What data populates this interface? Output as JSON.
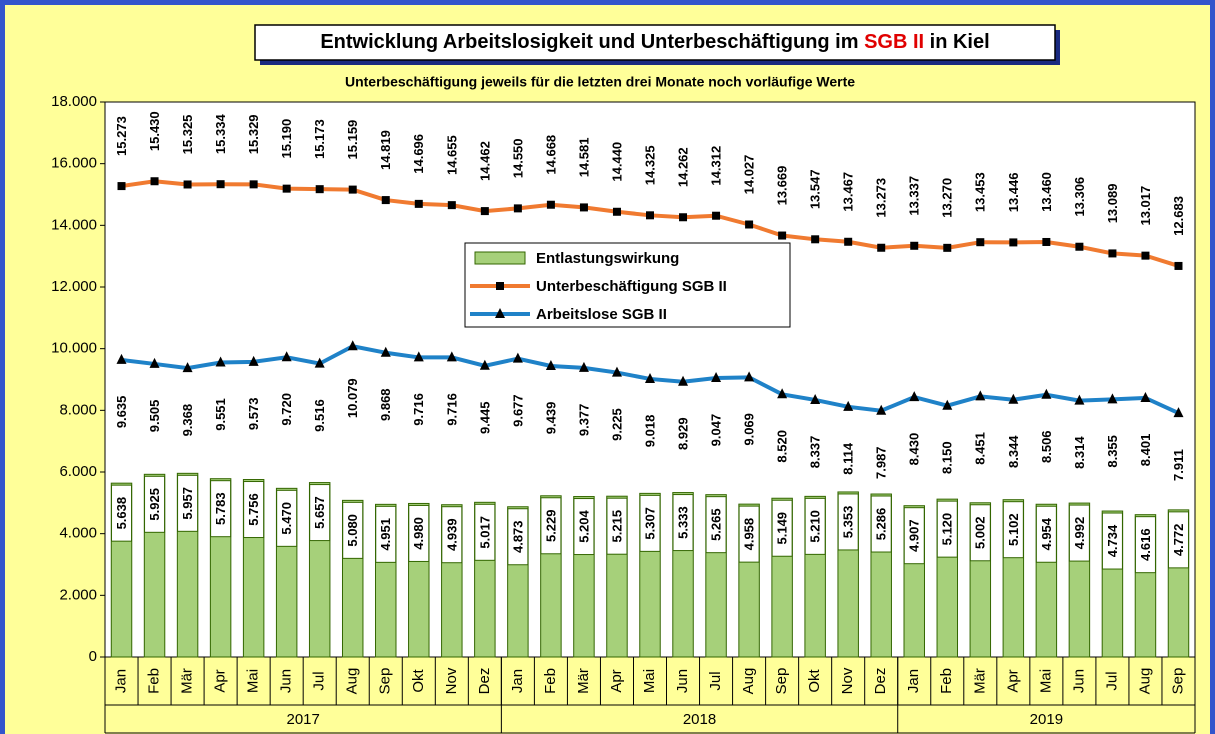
{
  "chart_data": {
    "type": "combo",
    "title": "Entwicklung Arbeitslosigkeit und Unterbeschäftigung im SGB II in Kiel",
    "title_highlight": "SGB II",
    "subtitle": "Unterbeschäftigung jeweils für die letzten drei Monate noch vorläufige Werte",
    "categories": [
      "Jan",
      "Feb",
      "Mär",
      "Apr",
      "Mai",
      "Jun",
      "Jul",
      "Aug",
      "Sep",
      "Okt",
      "Nov",
      "Dez",
      "Jan",
      "Feb",
      "Mär",
      "Apr",
      "Mai",
      "Jun",
      "Jul",
      "Aug",
      "Sep",
      "Okt",
      "Nov",
      "Dez",
      "Jan",
      "Feb",
      "Mär",
      "Apr",
      "Mai",
      "Jun",
      "Jul",
      "Aug",
      "Sep"
    ],
    "groups": [
      {
        "label": "2017",
        "size": 12
      },
      {
        "label": "2018",
        "size": 12
      },
      {
        "label": "2019",
        "size": 9
      }
    ],
    "ylim": [
      0,
      18000
    ],
    "yticks": [
      0,
      {
        "value": 2000,
        "label": "2.000"
      },
      {
        "value": 4000,
        "label": "4.000"
      },
      {
        "value": 6000,
        "label": "6.000"
      },
      {
        "value": 8000,
        "label": "8.000"
      },
      {
        "value": 10000,
        "label": "10.000"
      },
      {
        "value": 12000,
        "label": "12.000"
      },
      {
        "value": 14000,
        "label": "14.000"
      },
      {
        "value": 16000,
        "label": "16.000"
      },
      {
        "value": 18000,
        "label": "18.000"
      }
    ],
    "grid": false,
    "series": [
      {
        "name": "Entlastungswirkung",
        "type": "bar",
        "color": "#a6d07a",
        "values": [
          5638,
          5925,
          5957,
          5783,
          5756,
          5470,
          5657,
          5080,
          4951,
          4980,
          4939,
          5017,
          4873,
          5229,
          5204,
          5215,
          5307,
          5333,
          5265,
          4958,
          5149,
          5210,
          5353,
          5286,
          4907,
          5120,
          5002,
          5102,
          4954,
          4992,
          4734,
          4616,
          4772
        ],
        "value_labels": [
          "5.638",
          "5.925",
          "5.957",
          "5.783",
          "5.756",
          "5.470",
          "5.657",
          "5.080",
          "4.951",
          "4.980",
          "4.939",
          "5.017",
          "4.873",
          "5.229",
          "5.204",
          "5.215",
          "5.307",
          "5.333",
          "5.265",
          "4.958",
          "5.149",
          "5.210",
          "5.353",
          "5.286",
          "4.907",
          "5.120",
          "5.002",
          "5.102",
          "4.954",
          "4.992",
          "4.734",
          "4.616",
          "4.772"
        ]
      },
      {
        "name": "Unterbeschäftigung SGB II",
        "type": "line",
        "marker": "square",
        "color": "#f07a30",
        "values": [
          15273,
          15430,
          15325,
          15334,
          15329,
          15190,
          15173,
          15159,
          14819,
          14696,
          14655,
          14462,
          14550,
          14668,
          14581,
          14440,
          14325,
          14262,
          14312,
          14027,
          13669,
          13547,
          13467,
          13273,
          13337,
          13270,
          13453,
          13446,
          13460,
          13306,
          13089,
          13017,
          12683
        ],
        "value_labels": [
          "15.273",
          "15.430",
          "15.325",
          "15.334",
          "15.329",
          "15.190",
          "15.173",
          "15.159",
          "14.819",
          "14.696",
          "14.655",
          "14.462",
          "14.550",
          "14.668",
          "14.581",
          "14.440",
          "14.325",
          "14.262",
          "14.312",
          "14.027",
          "13.669",
          "13.547",
          "13.467",
          "13.273",
          "13.337",
          "13.270",
          "13.453",
          "13.446",
          "13.460",
          "13.306",
          "13.089",
          "13.017",
          "12.683"
        ]
      },
      {
        "name": "Arbeitslose SGB II",
        "type": "line",
        "marker": "triangle",
        "color": "#1f82c8",
        "values": [
          9635,
          9505,
          9368,
          9551,
          9573,
          9720,
          9516,
          10079,
          9868,
          9716,
          9716,
          9445,
          9677,
          9439,
          9377,
          9225,
          9018,
          8929,
          9047,
          9069,
          8520,
          8337,
          8114,
          7987,
          8430,
          8150,
          8451,
          8344,
          8506,
          8314,
          8355,
          8401,
          7911
        ],
        "value_labels": [
          "9.635",
          "9.505",
          "9.368",
          "9.551",
          "9.573",
          "9.720",
          "9.516",
          "10.079",
          "9.868",
          "9.716",
          "9.716",
          "9.445",
          "9.677",
          "9.439",
          "9.377",
          "9.225",
          "9.018",
          "8.929",
          "9.047",
          "9.069",
          "8.520",
          "8.337",
          "8.114",
          "7.987",
          "8.430",
          "8.150",
          "8.451",
          "8.344",
          "8.506",
          "8.314",
          "8.355",
          "8.401",
          "7.911"
        ]
      }
    ]
  }
}
